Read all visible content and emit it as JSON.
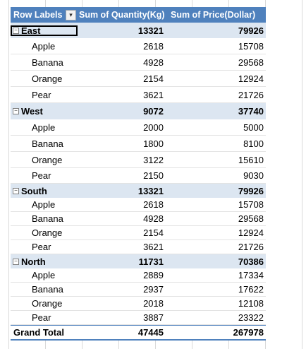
{
  "header": {
    "row_labels": "Row Labels",
    "col_quantity": "Sum of Quantity(Kg)",
    "col_price": "Sum of Price(Dollar)"
  },
  "icons": {
    "filter": "filter-sort-icon",
    "collapse": "collapse-minus-icon"
  },
  "colors": {
    "header_bg": "#4f81bd",
    "region_bg": "#dce6f1"
  },
  "regions": [
    {
      "name": "East",
      "quantity": "13321",
      "price": "79926",
      "items": [
        {
          "name": "Apple",
          "quantity": "2618",
          "price": "15708"
        },
        {
          "name": "Banana",
          "quantity": "4928",
          "price": "29568"
        },
        {
          "name": "Orange",
          "quantity": "2154",
          "price": "12924"
        },
        {
          "name": "Pear",
          "quantity": "3621",
          "price": "21726"
        }
      ]
    },
    {
      "name": "West",
      "quantity": "9072",
      "price": "37740",
      "items": [
        {
          "name": "Apple",
          "quantity": "2000",
          "price": "5000"
        },
        {
          "name": "Banana",
          "quantity": "1800",
          "price": "8100"
        },
        {
          "name": "Orange",
          "quantity": "3122",
          "price": "15610"
        },
        {
          "name": "Pear",
          "quantity": "2150",
          "price": "9030"
        }
      ]
    },
    {
      "name": "South",
      "quantity": "13321",
      "price": "79926",
      "items": [
        {
          "name": "Apple",
          "quantity": "2618",
          "price": "15708"
        },
        {
          "name": "Banana",
          "quantity": "4928",
          "price": "29568"
        },
        {
          "name": "Orange",
          "quantity": "2154",
          "price": "12924"
        },
        {
          "name": "Pear",
          "quantity": "3621",
          "price": "21726"
        }
      ]
    },
    {
      "name": "North",
      "quantity": "11731",
      "price": "70386",
      "items": [
        {
          "name": "Apple",
          "quantity": "2889",
          "price": "17334"
        },
        {
          "name": "Banana",
          "quantity": "2937",
          "price": "17622"
        },
        {
          "name": "Orange",
          "quantity": "2018",
          "price": "12108"
        },
        {
          "name": "Pear",
          "quantity": "3887",
          "price": "23322"
        }
      ]
    }
  ],
  "grand_total": {
    "label": "Grand Total",
    "quantity": "47445",
    "price": "267978"
  }
}
